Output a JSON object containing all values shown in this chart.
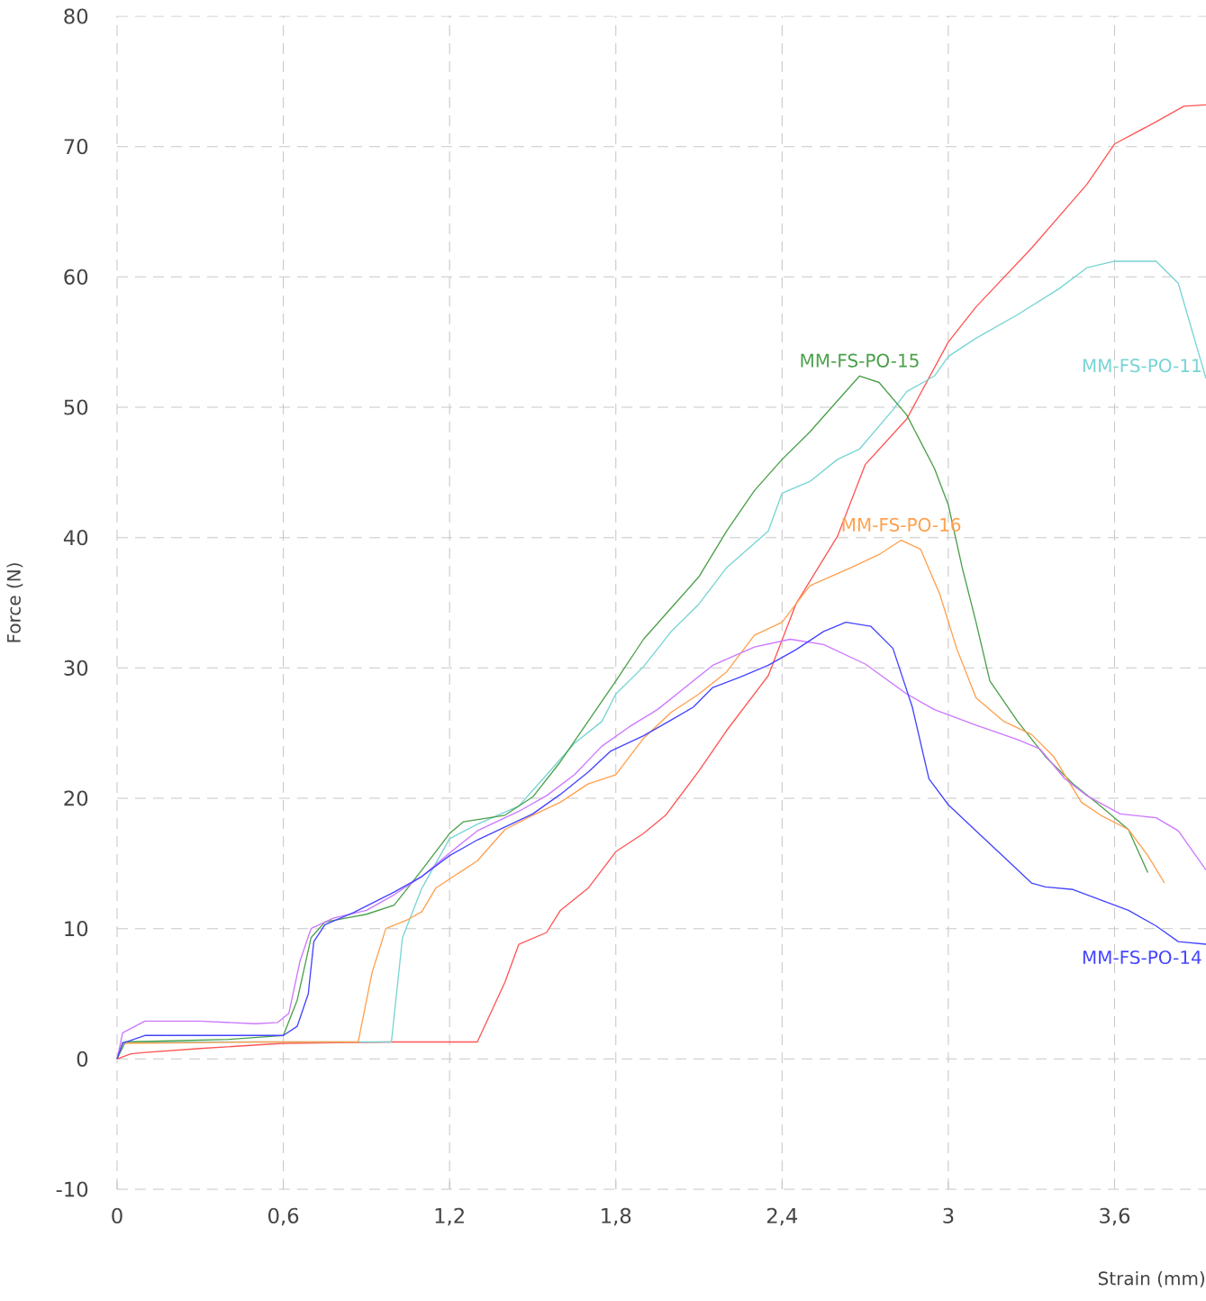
{
  "chart_data": {
    "type": "line",
    "xlabel": "Strain (mm)",
    "ylabel": "Force (N)",
    "xlim": [
      0,
      3.93
    ],
    "ylim": [
      -10,
      80
    ],
    "xticks": [
      0,
      {
        "value": 0.6,
        "label": "0,6"
      },
      {
        "value": 1.2,
        "label": "1,2"
      },
      {
        "value": 1.8,
        "label": "1,8"
      },
      {
        "value": 2.4,
        "label": "2,4"
      },
      3,
      {
        "value": 3.6,
        "label": "3,6"
      }
    ],
    "yticks": [
      -10,
      0,
      10,
      20,
      30,
      40,
      50,
      60,
      70,
      80
    ],
    "grid": true,
    "series": [
      {
        "color": "#ff5555",
        "x": [
          0,
          0.05,
          0.1,
          0.3,
          0.6,
          1.0,
          1.3,
          1.4,
          1.45,
          1.55,
          1.6,
          1.7,
          1.8,
          1.9,
          1.98,
          2.1,
          2.2,
          2.35,
          2.45,
          2.6,
          2.7,
          2.85,
          3.0,
          3.1,
          3.3,
          3.5,
          3.6,
          3.75,
          3.85,
          3.93
        ],
        "values": [
          0,
          0.4,
          0.5,
          0.8,
          1.2,
          1.3,
          1.3,
          5.9,
          8.8,
          9.7,
          11.4,
          13.1,
          15.9,
          17.3,
          18.7,
          22.1,
          25.2,
          29.4,
          34.9,
          40.1,
          45.6,
          49.1,
          55.0,
          57.7,
          62.2,
          67.1,
          70.2,
          71.9,
          73.1,
          73.2
        ]
      },
      {
        "name": "MM-FS-PO-11",
        "color": "#77d4d4",
        "x": [
          0,
          0.02,
          0.5,
          0.99,
          1.03,
          1.1,
          1.2,
          1.3,
          1.45,
          1.55,
          1.65,
          1.75,
          1.8,
          1.9,
          2.0,
          2.1,
          2.2,
          2.35,
          2.4,
          2.5,
          2.6,
          2.68,
          2.8,
          2.85,
          2.95,
          3.0,
          3.1,
          3.25,
          3.4,
          3.5,
          3.6,
          3.75,
          3.83,
          3.93
        ],
        "values": [
          0,
          1.3,
          1.3,
          1.3,
          9.3,
          13.1,
          16.9,
          18.0,
          19.4,
          21.8,
          24.2,
          25.9,
          28.0,
          30.1,
          32.8,
          34.9,
          37.7,
          40.5,
          43.4,
          44.3,
          46.0,
          46.8,
          49.8,
          51.2,
          52.4,
          53.9,
          55.3,
          57.1,
          59.1,
          60.7,
          61.2,
          61.2,
          59.5,
          52.2
        ]
      },
      {
        "name": "MM-FS-PO-15",
        "color": "#4aa04a",
        "x": [
          0,
          0.03,
          0.4,
          0.6,
          0.65,
          0.7,
          0.75,
          0.9,
          1.0,
          1.1,
          1.2,
          1.25,
          1.4,
          1.5,
          1.6,
          1.7,
          1.8,
          1.9,
          2.0,
          2.1,
          2.2,
          2.3,
          2.4,
          2.5,
          2.6,
          2.68,
          2.75,
          2.85,
          2.95,
          3.0,
          3.05,
          3.1,
          3.15,
          3.25,
          3.35,
          3.45,
          3.55,
          3.65,
          3.72
        ],
        "values": [
          0,
          1.3,
          1.5,
          1.8,
          4.5,
          9.3,
          10.5,
          11.1,
          11.8,
          14.5,
          17.3,
          18.2,
          18.7,
          20.1,
          22.8,
          25.9,
          29.0,
          32.2,
          34.6,
          37.0,
          40.5,
          43.6,
          46.0,
          48.1,
          50.5,
          52.4,
          51.9,
          49.4,
          45.3,
          42.5,
          37.7,
          33.5,
          29.0,
          25.9,
          23.2,
          21.1,
          19.4,
          17.6,
          14.3
        ]
      },
      {
        "name": "MM-FS-PO-16",
        "color": "#ffa04d",
        "x": [
          0,
          0.02,
          0.5,
          0.87,
          0.92,
          0.97,
          1.05,
          1.1,
          1.15,
          1.3,
          1.4,
          1.5,
          1.6,
          1.7,
          1.8,
          1.9,
          2.0,
          2.1,
          2.2,
          2.3,
          2.4,
          2.5,
          2.65,
          2.75,
          2.83,
          2.9,
          2.97,
          3.03,
          3.1,
          3.2,
          3.3,
          3.38,
          3.48,
          3.55,
          3.65,
          3.72,
          3.78
        ],
        "values": [
          0,
          1.2,
          1.3,
          1.3,
          6.6,
          10.0,
          10.7,
          11.3,
          13.1,
          15.2,
          17.6,
          18.7,
          19.7,
          21.1,
          21.8,
          24.6,
          26.6,
          28.0,
          29.7,
          32.5,
          33.5,
          36.3,
          37.7,
          38.7,
          39.8,
          39.1,
          35.6,
          31.5,
          27.7,
          25.9,
          24.9,
          23.2,
          19.7,
          18.7,
          17.6,
          15.6,
          13.5
        ]
      },
      {
        "color": "#cc77ff",
        "x": [
          0,
          0.02,
          0.1,
          0.3,
          0.5,
          0.58,
          0.62,
          0.66,
          0.7,
          0.78,
          0.9,
          1.0,
          1.1,
          1.2,
          1.3,
          1.45,
          1.55,
          1.65,
          1.75,
          1.85,
          1.95,
          2.05,
          2.15,
          2.3,
          2.43,
          2.55,
          2.7,
          2.85,
          2.95,
          3.1,
          3.25,
          3.33,
          3.42,
          3.5,
          3.62,
          3.75,
          3.83,
          3.93
        ],
        "values": [
          0,
          2.0,
          2.9,
          2.9,
          2.7,
          2.8,
          3.5,
          7.5,
          10.0,
          10.8,
          11.4,
          12.6,
          14.0,
          15.8,
          17.5,
          19.0,
          20.2,
          21.8,
          24.0,
          25.5,
          26.8,
          28.5,
          30.2,
          31.6,
          32.2,
          31.8,
          30.3,
          28.0,
          26.8,
          25.6,
          24.5,
          23.8,
          21.5,
          20.2,
          18.8,
          18.5,
          17.5,
          14.5
        ]
      },
      {
        "name": "MM-FS-PO-14",
        "color": "#4444ff",
        "x": [
          0,
          0.02,
          0.1,
          0.4,
          0.6,
          0.65,
          0.69,
          0.71,
          0.75,
          0.85,
          1.0,
          1.1,
          1.2,
          1.3,
          1.4,
          1.5,
          1.6,
          1.7,
          1.78,
          1.9,
          2.0,
          2.08,
          2.15,
          2.25,
          2.35,
          2.45,
          2.55,
          2.63,
          2.72,
          2.8,
          2.87,
          2.93,
          3.0,
          3.1,
          3.2,
          3.3,
          3.35,
          3.45,
          3.55,
          3.65,
          3.75,
          3.83,
          3.93
        ],
        "values": [
          0,
          1.2,
          1.8,
          1.8,
          1.8,
          2.5,
          5.0,
          9.0,
          10.3,
          11.2,
          12.8,
          14.0,
          15.6,
          16.8,
          17.8,
          18.8,
          20.3,
          22.0,
          23.6,
          24.8,
          26.0,
          27.0,
          28.5,
          29.3,
          30.2,
          31.4,
          32.8,
          33.5,
          33.2,
          31.5,
          27.0,
          21.5,
          19.5,
          17.5,
          15.5,
          13.5,
          13.2,
          13.0,
          12.2,
          11.4,
          10.2,
          9.0,
          8.8
        ]
      }
    ]
  }
}
